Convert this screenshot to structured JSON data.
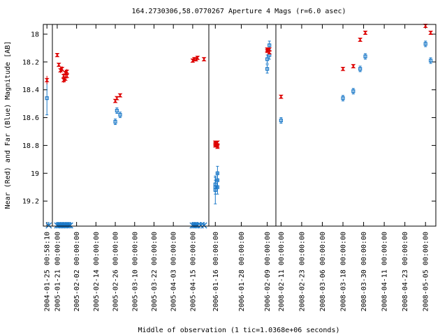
{
  "chart_data": {
    "type": "scatter",
    "title": "164.2730306,58.0770267   Aperture 4 Mags (r=6.0 asec)",
    "xlabel": "Middle of observation (1 tic=1.0368e+06 seconds)",
    "ylabel": "Near (Red) and Far (Blue) Magnitude [AB]",
    "ylim": [
      19.38,
      17.93
    ],
    "y_ticks": [
      "18",
      "18.2",
      "18.4",
      "18.6",
      "18.8",
      "19",
      "19.2"
    ],
    "x_ticks": [
      "2004-01-25 00:58:10",
      "2005-01-21 00:00:00",
      "2005-02-02 00:00:00",
      "2005-02-14 00:00:00",
      "2005-02-26 00:00:00",
      "2005-03-10 00:00:00",
      "2005-03-22 00:00:00",
      "2005-04-03 00:00:00",
      "2005-04-15 00:00:00",
      "2006-01-16 00:00:00",
      "2006-01-28 00:00:00",
      "2006-02-09 00:00:00",
      "2008-02-11 00:00:00",
      "2008-02-23 00:00:00",
      "2008-03-06 00:00:00",
      "2008-03-18 00:00:00",
      "2008-03-30 00:00:00",
      "2008-04-11 00:00:00",
      "2008-04-23 00:00:00",
      "2008-05-05 00:00:00"
    ],
    "grid": false,
    "colors": {
      "near": "#dd0000",
      "far": "#1a78c8",
      "axis": "#000000"
    },
    "series": [
      {
        "name": "Near (Red)",
        "points": [
          {
            "x": "2004-01-25",
            "y": 18.33,
            "err": 0.03
          },
          {
            "x": "2005-01-21",
            "y": 18.15,
            "err": 0.01
          },
          {
            "x": "2005-01-22",
            "y": 18.22,
            "err": 0.01
          },
          {
            "x": "2005-01-23",
            "y": 18.26,
            "err": 0.02
          },
          {
            "x": "2005-01-24",
            "y": 18.25,
            "err": 0.02
          },
          {
            "x": "2005-01-25",
            "y": 18.33,
            "err": 0.02
          },
          {
            "x": "2005-01-25",
            "y": 18.3,
            "err": 0.02
          },
          {
            "x": "2005-01-26",
            "y": 18.28,
            "err": 0.02
          },
          {
            "x": "2005-01-26",
            "y": 18.32,
            "err": 0.02
          },
          {
            "x": "2005-01-27",
            "y": 18.27,
            "err": 0.02
          },
          {
            "x": "2005-01-27",
            "y": 18.3,
            "err": 0.02
          },
          {
            "x": "2005-02-26",
            "y": 18.48,
            "err": 0.01
          },
          {
            "x": "2005-02-27",
            "y": 18.46,
            "err": 0.01
          },
          {
            "x": "2005-03-01",
            "y": 18.44,
            "err": 0.01
          },
          {
            "x": "2005-04-15",
            "y": 18.19,
            "err": 0.01
          },
          {
            "x": "2005-04-16",
            "y": 18.18,
            "err": 0.01
          },
          {
            "x": "2005-04-17",
            "y": 18.18,
            "err": 0.01
          },
          {
            "x": "2005-04-18",
            "y": 18.17,
            "err": 0.01
          },
          {
            "x": "2005-04-22",
            "y": 18.18,
            "err": 0.01
          },
          {
            "x": "2006-01-16",
            "y": 18.78,
            "err": 0.01
          },
          {
            "x": "2006-01-16",
            "y": 18.8,
            "err": 0.01
          },
          {
            "x": "2006-01-16",
            "y": 18.79,
            "err": 0.01
          },
          {
            "x": "2006-01-17",
            "y": 18.81,
            "err": 0.01
          },
          {
            "x": "2006-01-17",
            "y": 18.78,
            "err": 0.01
          },
          {
            "x": "2006-01-17",
            "y": 18.8,
            "err": 0.01
          },
          {
            "x": "2006-02-09",
            "y": 18.11,
            "err": 0.01
          },
          {
            "x": "2006-02-09",
            "y": 18.12,
            "err": 0.01
          },
          {
            "x": "2006-02-10",
            "y": 18.11,
            "err": 0.01
          },
          {
            "x": "2006-02-10",
            "y": 18.13,
            "err": 0.01
          },
          {
            "x": "2008-02-11",
            "y": 18.45,
            "err": 0.01
          },
          {
            "x": "2008-03-18",
            "y": 18.25,
            "err": 0.01
          },
          {
            "x": "2008-03-24",
            "y": 18.23,
            "err": 0.01
          },
          {
            "x": "2008-03-28",
            "y": 18.04,
            "err": 0.01
          },
          {
            "x": "2008-03-31",
            "y": 17.99,
            "err": 0.01
          },
          {
            "x": "2008-05-05",
            "y": 17.94,
            "err": 0.01
          },
          {
            "x": "2008-05-08",
            "y": 17.99,
            "err": 0.01
          }
        ]
      },
      {
        "name": "Far (Blue)",
        "points": [
          {
            "x": "2004-01-25",
            "y": 18.46,
            "err": 0.12
          },
          {
            "x": "2005-02-26",
            "y": 18.63,
            "err": 0.02
          },
          {
            "x": "2005-02-27",
            "y": 18.55,
            "err": 0.02
          },
          {
            "x": "2005-03-01",
            "y": 18.58,
            "err": 0.02
          },
          {
            "x": "2006-01-16",
            "y": 19.12,
            "err": 0.1
          },
          {
            "x": "2006-01-16",
            "y": 19.08,
            "err": 0.05
          },
          {
            "x": "2006-01-16",
            "y": 19.1,
            "err": 0.05
          },
          {
            "x": "2006-01-17",
            "y": 19.05,
            "err": 0.05
          },
          {
            "x": "2006-01-17",
            "y": 19.1,
            "err": 0.05
          },
          {
            "x": "2006-01-17",
            "y": 19.0,
            "err": 0.05
          },
          {
            "x": "2006-02-09",
            "y": 18.25,
            "err": 0.03
          },
          {
            "x": "2006-02-09",
            "y": 18.18,
            "err": 0.03
          },
          {
            "x": "2006-02-10",
            "y": 18.15,
            "err": 0.03
          },
          {
            "x": "2006-02-10",
            "y": 18.08,
            "err": 0.03
          },
          {
            "x": "2008-02-11",
            "y": 18.62,
            "err": 0.02
          },
          {
            "x": "2008-03-18",
            "y": 18.46,
            "err": 0.02
          },
          {
            "x": "2008-03-24",
            "y": 18.41,
            "err": 0.02
          },
          {
            "x": "2008-03-28",
            "y": 18.25,
            "err": 0.02
          },
          {
            "x": "2008-03-31",
            "y": 18.16,
            "err": 0.02
          },
          {
            "x": "2008-05-05",
            "y": 18.07,
            "err": 0.02
          },
          {
            "x": "2008-05-08",
            "y": 18.19,
            "err": 0.02
          }
        ],
        "upper_limits": [
          "2004-01-26",
          "2005-01-21",
          "2005-01-22",
          "2005-01-23",
          "2005-01-24",
          "2005-01-25",
          "2005-01-26",
          "2005-01-27",
          "2005-01-28",
          "2005-01-29",
          "2005-04-15",
          "2005-04-16",
          "2005-04-17",
          "2005-04-18",
          "2005-04-20",
          "2005-04-22"
        ]
      }
    ]
  }
}
